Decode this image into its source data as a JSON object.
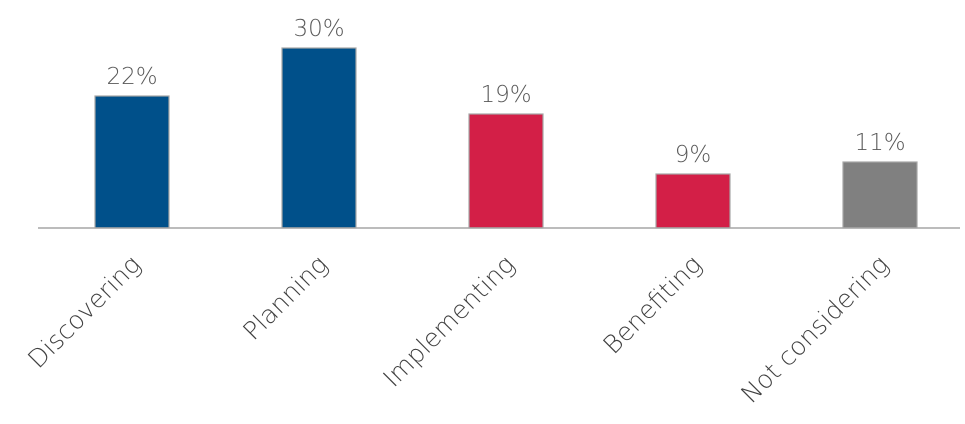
{
  "chart_data": {
    "type": "bar",
    "categories": [
      "Discovering",
      "Planning",
      "Implementing",
      "Benefiting",
      "Not considering"
    ],
    "values": [
      22,
      30,
      19,
      9,
      11
    ],
    "data_labels": [
      "22%",
      "30%",
      "19%",
      "9%",
      "11%"
    ],
    "colors": [
      "#00508a",
      "#00508a",
      "#d31f47",
      "#d31f47",
      "#808080"
    ],
    "title": "",
    "xlabel": "",
    "ylabel": "",
    "unit": "%",
    "ylim": [
      0,
      30
    ],
    "grid": false,
    "legend": "none"
  }
}
